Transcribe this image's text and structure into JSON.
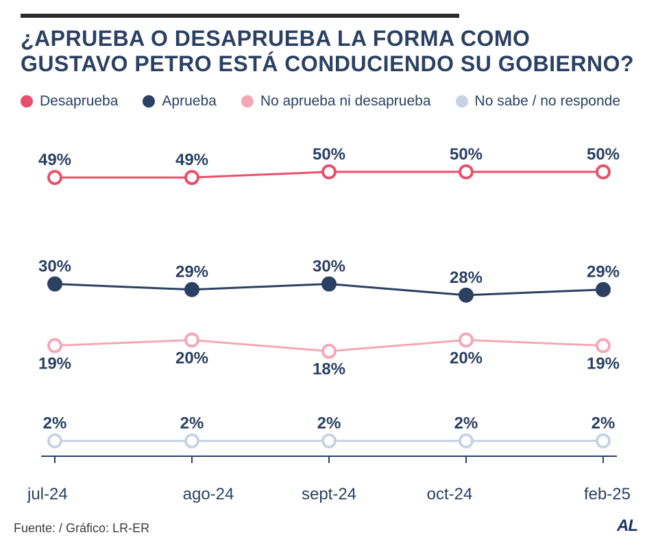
{
  "title_line1": "¿APRUEBA O DESAPRUEBA LA FORMA COMO",
  "title_line2": "GUSTAVO PETRO ESTÁ CONDUCIENDO SU GOBIERNO?",
  "legend": [
    {
      "label": "Desaprueba",
      "color": "#e94f6a"
    },
    {
      "label": "Aprueba",
      "color": "#2b4062"
    },
    {
      "label": "No aprueba ni desaprueba",
      "color": "#f4a8b6"
    },
    {
      "label": "No sabe / no responde",
      "color": "#c7d3e3"
    }
  ],
  "chart": {
    "type": "line",
    "categories": [
      "jul-24",
      "ago-24",
      "sept-24",
      "oct-24",
      "feb-25"
    ],
    "ylim": [
      0,
      55
    ],
    "background_color": "#ffffff",
    "line_width": 3,
    "marker_radius": 9,
    "marker_fill": "#ffffff",
    "marker_stroke_width": 4,
    "label_fontsize": 24,
    "label_fontweight": 700,
    "label_color": "#2b4062",
    "xaxis_color": "#2b4062",
    "series": [
      {
        "name": "Desaprueba",
        "color": "#e94f6a",
        "values": [
          49,
          49,
          50,
          50,
          50
        ],
        "label_offset": "above"
      },
      {
        "name": "Aprueba",
        "color": "#2b4062",
        "values": [
          30,
          29,
          30,
          28,
          29
        ],
        "label_offset": "above",
        "marker_fill_self": true
      },
      {
        "name": "No aprueba ni desaprueba",
        "color": "#f4a8b6",
        "values": [
          19,
          20,
          18,
          20,
          19
        ],
        "label_offset": "below"
      },
      {
        "name": "No sabe / no responde",
        "color": "#c7d3e3",
        "values": [
          2,
          2,
          2,
          2,
          2
        ],
        "label_offset": "above"
      }
    ]
  },
  "source": "Fuente: / Gráfico: LR-ER",
  "logo": "AL"
}
